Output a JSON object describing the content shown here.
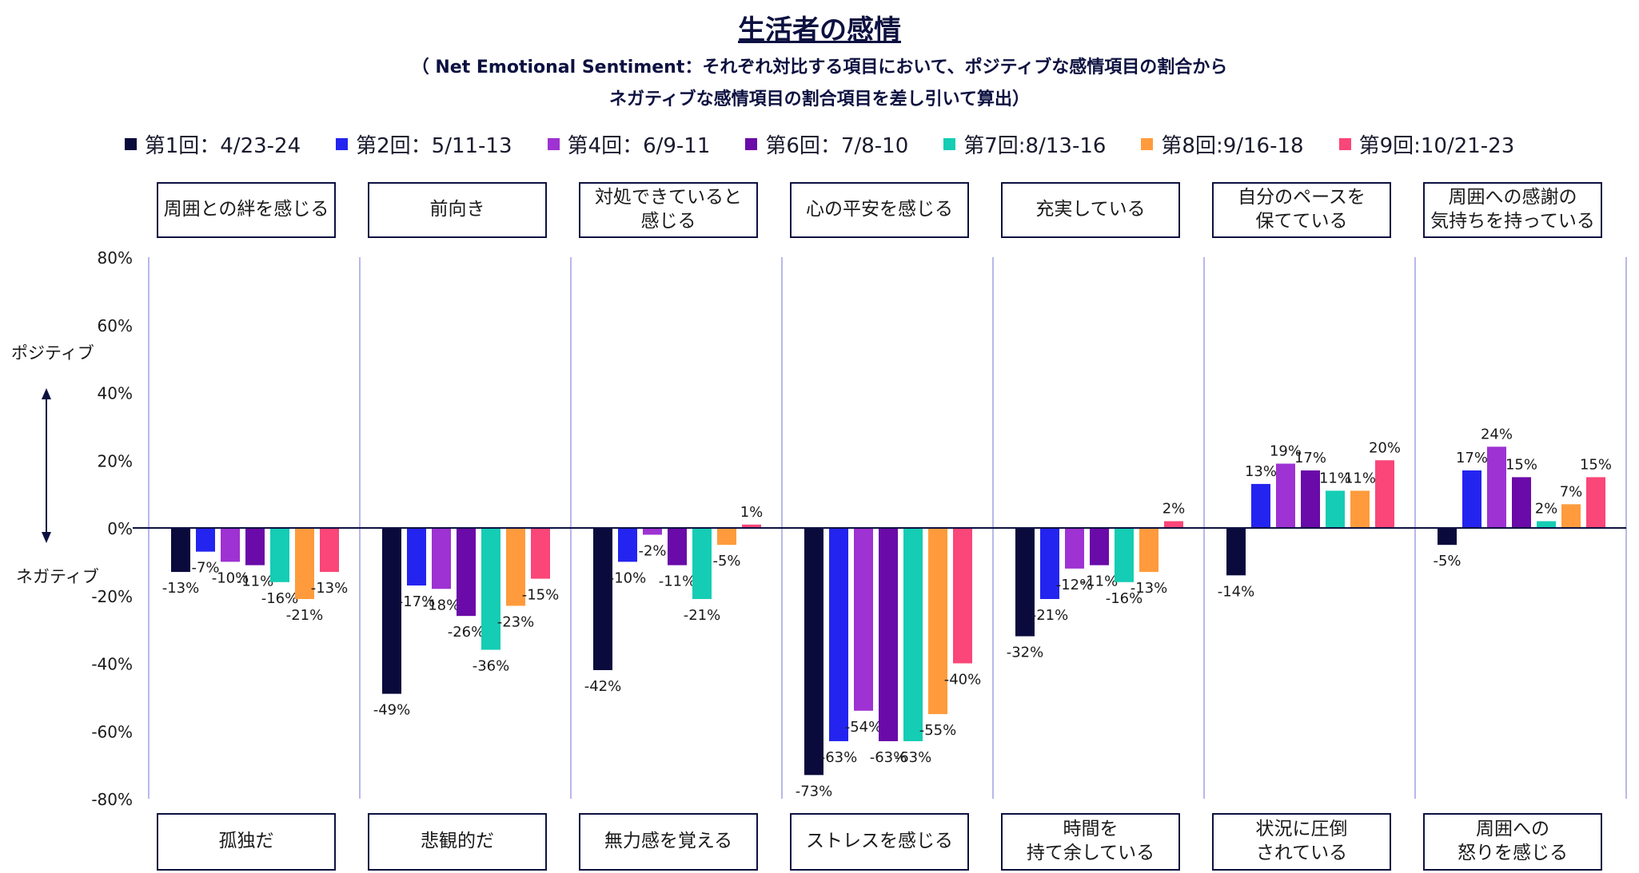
{
  "title": "生活者の感情",
  "subtitle_line1": "（ Net Emotional Sentiment：それぞれ対比する項目において、ポジティブな感情項目の割合から",
  "subtitle_line2": "ネガティブな感情項目の割合項目を差し引いて算出）",
  "axis_side_labels": {
    "positive": "ポジティブ",
    "negative": "ネガティブ"
  },
  "chart_data": {
    "type": "bar",
    "ylim": [
      -80,
      80
    ],
    "y_ticks": [
      "80%",
      "60%",
      "40%",
      "20%",
      "0%",
      "-20%",
      "-40%",
      "-60%",
      "-80%"
    ],
    "y_tick_values": [
      80,
      60,
      40,
      20,
      0,
      -20,
      -40,
      -60,
      -80
    ],
    "grid": false,
    "legend_position": "top",
    "categories_positive": [
      "周囲との絆を感じる",
      "前向き",
      "対処できていると\n感じる",
      "心の平安を感じる",
      "充実している",
      "自分のペースを\n保てている",
      "周囲への感謝の\n気持ちを持っている"
    ],
    "categories_negative": [
      "孤独だ",
      "悲観的だ",
      "無力感を覚える",
      "ストレスを感じる",
      "時間を\n持て余している",
      "状況に圧倒\nされている",
      "周囲への\n怒りを感じる"
    ],
    "series": [
      {
        "name": "第1回：4/23-24",
        "color": "#0a0a3c",
        "values": [
          -13,
          -49,
          -42,
          -73,
          -32,
          -14,
          -5
        ]
      },
      {
        "name": "第2回：5/11-13",
        "color": "#2424f0",
        "values": [
          -7,
          -17,
          -10,
          -63,
          -21,
          13,
          17
        ]
      },
      {
        "name": "第4回：6/9-11",
        "color": "#9e32d2",
        "values": [
          -10,
          -18,
          -2,
          -54,
          -12,
          19,
          24
        ]
      },
      {
        "name": "第6回：7/8-10",
        "color": "#6a0aa8",
        "values": [
          -11,
          -26,
          -11,
          -63,
          -11,
          17,
          15
        ]
      },
      {
        "name": "第7回:8/13-16",
        "color": "#14cdb4",
        "values": [
          -16,
          -36,
          -21,
          -63,
          -16,
          11,
          2
        ]
      },
      {
        "name": "第8回:9/16-18",
        "color": "#ff9b3c",
        "values": [
          -21,
          -23,
          -5,
          -55,
          -13,
          11,
          7
        ]
      },
      {
        "name": "第9回:10/21-23",
        "color": "#fa4678",
        "values": [
          -13,
          -15,
          1,
          -40,
          2,
          20,
          15
        ]
      }
    ],
    "value_labels": [
      [
        "-13%",
        "-49%",
        "-42%",
        "-73%",
        "-32%",
        "-14%",
        "-5%"
      ],
      [
        "-7%",
        "-17%",
        "-10%",
        "-63%",
        "-21%",
        "13%",
        "17%"
      ],
      [
        "-10%",
        "-18%",
        "-2%",
        "-54%",
        "-12%",
        "19%",
        "24%"
      ],
      [
        "-11%",
        "-26%",
        "-11%",
        "-63%",
        "-11%",
        "17%",
        "15%"
      ],
      [
        "-16%",
        "-36%",
        "-21%",
        "-63%",
        "-16%",
        "11%",
        "2%"
      ],
      [
        "-21%",
        "-23%",
        "-5%",
        "-55%",
        "-13%",
        "11%",
        "7%"
      ],
      [
        "-13%",
        "-15%",
        "1%",
        "-40%",
        "2%",
        "20%",
        "15%"
      ]
    ]
  }
}
